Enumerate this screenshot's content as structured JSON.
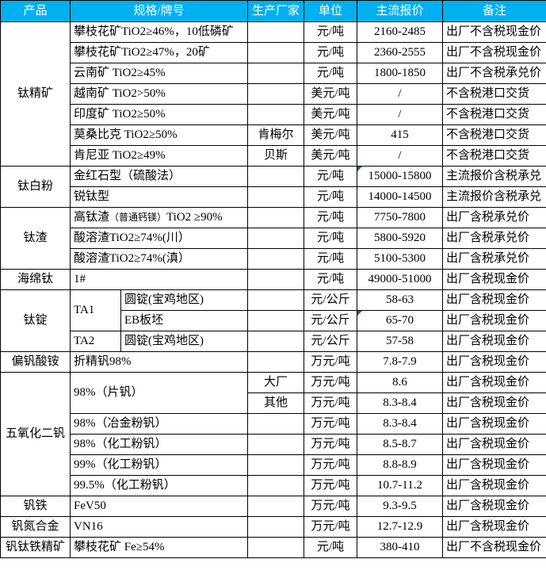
{
  "colors": {
    "header_bg": "#00B0F0",
    "header_text": "#ffffff",
    "border": "#000000",
    "flag": "#107C10",
    "text": "#000000",
    "page_bg": "#ffffff"
  },
  "columns": [
    "产品",
    "规格/牌号",
    "生产厂家",
    "单位",
    "主流报价",
    "备注"
  ],
  "groups": [
    "钛精矿",
    "钛白粉",
    "钛渣",
    "海绵钛",
    "钛锭",
    "偏钒酸铵",
    "五氧化二钒",
    "钒铁",
    "钒氮合金",
    "钒钛铁精矿"
  ],
  "rows": [
    {
      "spec": "攀枝花矿TiO2≥46%，10低磷矿",
      "maker": "",
      "unit": "元/吨",
      "price": "2160-2485",
      "note": "出厂不含税现金价"
    },
    {
      "spec": "攀枝花矿TiO2≥47%，20矿",
      "maker": "",
      "unit": "元/吨",
      "price": "2360-2555",
      "note": "出厂不含税现金价"
    },
    {
      "spec": "云南矿 TiO2≥45%",
      "maker": "",
      "unit": "元/吨",
      "price": "1800-1850",
      "note": "出厂不含税承兑价"
    },
    {
      "spec": "越南矿 TiO2>50%",
      "maker": "",
      "unit": "美元/吨",
      "price": "/",
      "note": "不含税港口交货"
    },
    {
      "spec": "印度矿 TiO2≥50%",
      "maker": "",
      "unit": "美元/吨",
      "price": "/",
      "note": "不含税港口交货"
    },
    {
      "spec": "莫桑比克 TiO2≥50%",
      "maker": "肯梅尔",
      "unit": "美元/吨",
      "price": "415",
      "note": "不含税港口交货"
    },
    {
      "spec": "肯尼亚 TiO2≥49%",
      "maker": "贝斯",
      "unit": "美元/吨",
      "price": "/",
      "note": "不含税港口交货"
    },
    {
      "spec": "金红石型（硫酸法）",
      "maker": "",
      "unit": "元/吨",
      "price": "15000-15800",
      "note": "主流报价含税承兑"
    },
    {
      "spec": "锐钛型",
      "maker": "",
      "unit": "元/吨",
      "price": "14000-14500",
      "note": "主流报价含税承兑"
    },
    {
      "spec_head": "高钛渣",
      "spec_small": "（普通钙镁）",
      "spec_tail": "TiO2 ≥90%",
      "maker": "",
      "unit": "元/吨",
      "price": "7750-7800",
      "note": "出厂含税承兑价"
    },
    {
      "spec": "酸溶渣TiO2≥74%(川）",
      "maker": "",
      "unit": "元/吨",
      "price": "5800-5920",
      "note": "出厂含税承兑价"
    },
    {
      "spec": "酸溶渣TiO2≥74%(滇）",
      "maker": "",
      "unit": "元/吨",
      "price": "5100-5300",
      "note": "出厂含税承兑价"
    },
    {
      "spec": "1#",
      "maker": "",
      "unit": "元/吨",
      "price": "49000-51000",
      "note": "出厂含税现金价"
    },
    {
      "grade": "TA1",
      "spec": "圆锭(宝鸡地区)",
      "maker": "",
      "unit": "元/公斤",
      "price": "58-63",
      "note": "出厂含税现金价"
    },
    {
      "spec": "EB板坯",
      "maker": "",
      "unit": "元/公斤",
      "price": "65-70",
      "note": "出厂含税现金价"
    },
    {
      "grade": "TA2",
      "spec": "圆锭(宝鸡地区)",
      "maker": "",
      "unit": "元/公斤",
      "price": "57-58",
      "note": "出厂含税现金价"
    },
    {
      "spec": "折精钒98%",
      "maker": "",
      "unit": "万元/吨",
      "price": "7.8-7.9",
      "note": "出厂含税现金价"
    },
    {
      "spec": "98%（片钒）",
      "maker": "大厂",
      "unit": "万元/吨",
      "price": "8.6",
      "note": "出厂含税现金价"
    },
    {
      "maker": "其他",
      "unit": "万元/吨",
      "price": "8.3-8.4",
      "note": "出厂含税现金价"
    },
    {
      "spec": "98%（冶金粉钒）",
      "maker": "",
      "unit": "万元/吨",
      "price": "8.3-8.4",
      "note": "出厂含税现金价"
    },
    {
      "spec": "98%（化工粉钒）",
      "maker": "",
      "unit": "万元/吨",
      "price": "8.5-8.7",
      "note": "出厂含税现金价"
    },
    {
      "spec": "99%（化工粉钒）",
      "maker": "",
      "unit": "万元/吨",
      "price": "8.8-8.9",
      "note": "出厂含税现金价"
    },
    {
      "spec": "99.5%（化工粉钒）",
      "maker": "",
      "unit": "万元/吨",
      "price": "10.7-11.2",
      "note": "出厂含税现金价"
    },
    {
      "spec": "FeV50",
      "maker": "",
      "unit": "万元/吨",
      "price": "9.3-9.5",
      "note": "出厂含税现金价"
    },
    {
      "spec": "VN16",
      "maker": "",
      "unit": "万元/吨",
      "price": "12.7-12.9",
      "note": "出厂含税现金价"
    },
    {
      "spec": "攀枝花矿 Fe≥54%",
      "maker": "",
      "unit": "元/吨",
      "price": "380-410",
      "note": "出厂不含税现金价"
    }
  ]
}
